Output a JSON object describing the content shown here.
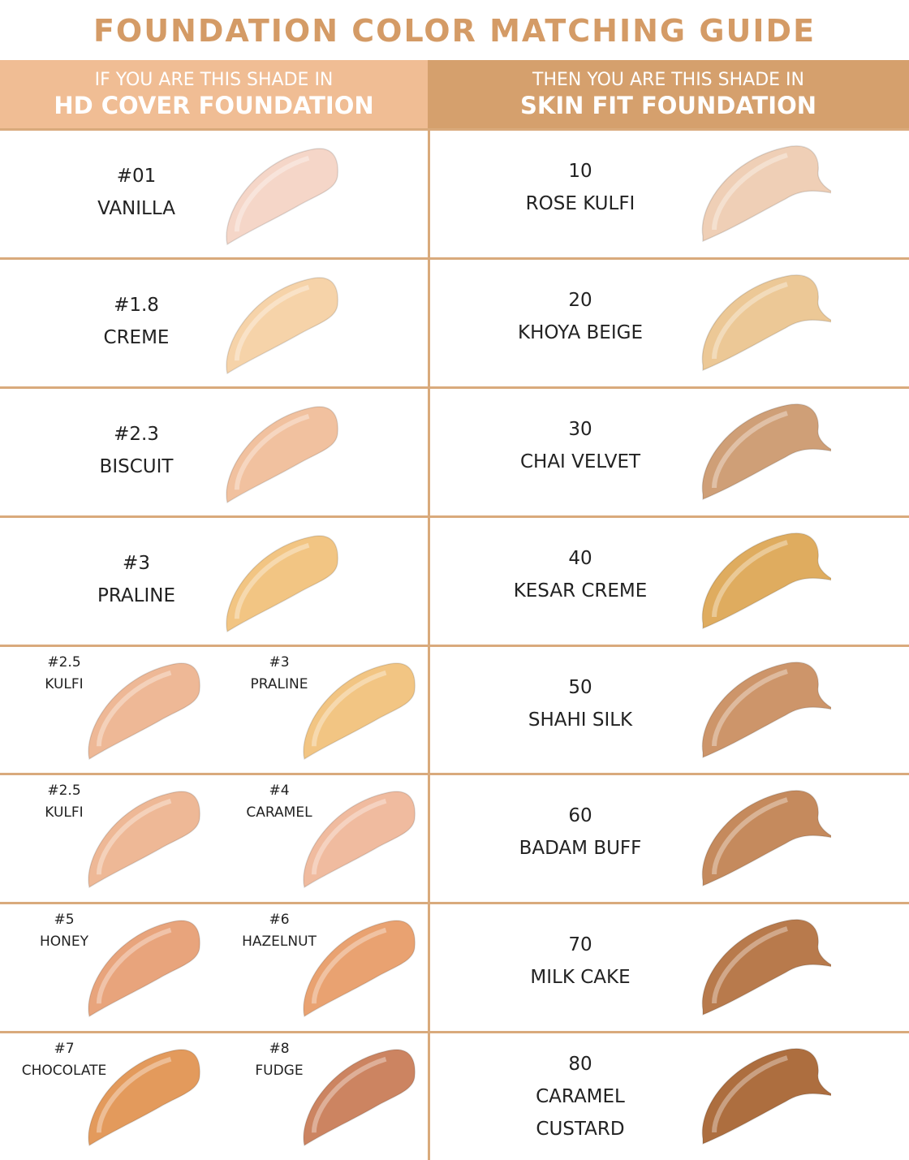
{
  "title": "FOUNDATION COLOR MATCHING GUIDE",
  "header": {
    "left": {
      "line1": "IF YOU ARE THIS SHADE IN",
      "line2": "HD COVER FOUNDATION"
    },
    "right": {
      "line1": "THEN YOU ARE THIS SHADE IN",
      "line2": "SKIN FIT FOUNDATION"
    }
  },
  "rows": [
    {
      "left": [
        {
          "number": "#01",
          "name": "VANILLA",
          "color": "#f5d6c8"
        }
      ],
      "right": {
        "number": "10",
        "name": "ROSE KULFI",
        "color": "#efcfb6"
      }
    },
    {
      "left": [
        {
          "number": "#1.8",
          "name": "CREME",
          "color": "#f6d3a9"
        }
      ],
      "right": {
        "number": "20",
        "name": "KHOYA BEIGE",
        "color": "#ecc896"
      }
    },
    {
      "left": [
        {
          "number": "#2.3",
          "name": "BISCUIT",
          "color": "#f1c19f"
        }
      ],
      "right": {
        "number": "30",
        "name": "CHAI VELVET",
        "color": "#cf9f77"
      }
    },
    {
      "left": [
        {
          "number": "#3",
          "name": "PRALINE",
          "color": "#f2c583"
        }
      ],
      "right": {
        "number": "40",
        "name": "KESAR CREME",
        "color": "#dfac5f"
      }
    },
    {
      "left": [
        {
          "number": "#2.5",
          "name": "KULFI",
          "color": "#eeb896"
        },
        {
          "number": "#3",
          "name": "PRALINE",
          "color": "#f2c583"
        }
      ],
      "right": {
        "number": "50",
        "name": "SHAHI SILK",
        "color": "#cd956a"
      }
    },
    {
      "left": [
        {
          "number": "#2.5",
          "name": "KULFI",
          "color": "#eeb896"
        },
        {
          "number": "#4",
          "name": "CARAMEL",
          "color": "#f0bb9f"
        }
      ],
      "right": {
        "number": "60",
        "name": "BADAM BUFF",
        "color": "#c58a5d"
      }
    },
    {
      "left": [
        {
          "number": "#5",
          "name": "HONEY",
          "color": "#e8a47c"
        },
        {
          "number": "#6",
          "name": "HAZELNUT",
          "color": "#e9a271"
        }
      ],
      "right": {
        "number": "70",
        "name": "MILK CAKE",
        "color": "#b87a4c"
      }
    },
    {
      "left": [
        {
          "number": "#7",
          "name": "CHOCOLATE",
          "color": "#e39a5c"
        },
        {
          "number": "#8",
          "name": "FUDGE",
          "color": "#cc8461"
        }
      ],
      "right": {
        "number": "80",
        "name": "CARAMEL CUSTARD",
        "color": "#ad6e3f"
      }
    }
  ]
}
